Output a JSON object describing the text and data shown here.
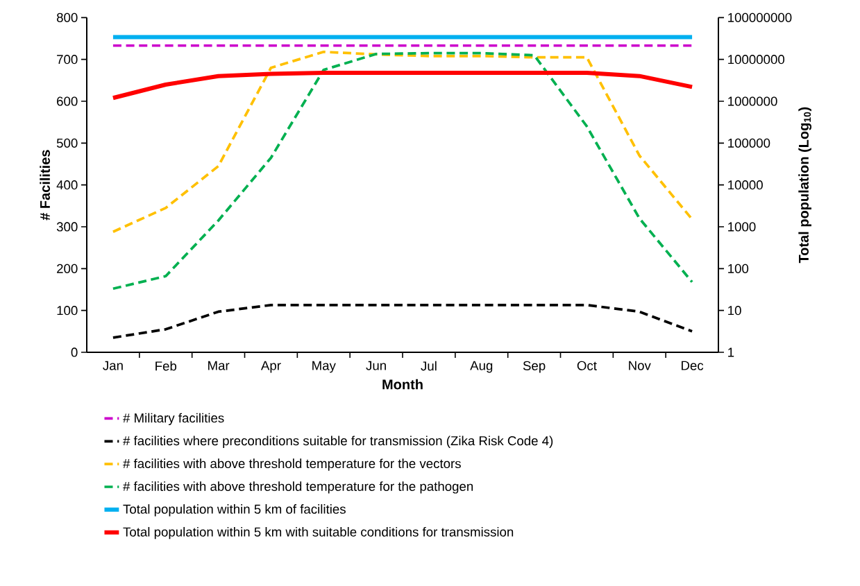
{
  "chart_data": {
    "type": "line",
    "xlabel": "Month",
    "ylabel": "# Facilities",
    "y2label": "Total population (Log$_{10}$)",
    "categories": [
      "Jan",
      "Feb",
      "Mar",
      "Apr",
      "May",
      "Jun",
      "Jul",
      "Aug",
      "Sep",
      "Oct",
      "Nov",
      "Dec"
    ],
    "ylim": [
      0,
      800
    ],
    "yticks": [
      0,
      100,
      200,
      300,
      400,
      500,
      600,
      700,
      800
    ],
    "y2lim": [
      1,
      100000000
    ],
    "y2ticks": [
      1,
      10,
      100,
      1000,
      10000,
      100000,
      1000000,
      10000000,
      100000000
    ],
    "log": "y2",
    "grid": false,
    "legend": "bottom",
    "marker": "none",
    "series": [
      {
        "name": "# Military facilities",
        "color": "#cc00cc",
        "line_style": "dashed",
        "values": [
          733,
          733,
          733,
          733,
          733,
          733,
          733,
          733,
          733,
          733,
          733,
          733
        ]
      },
      {
        "name": "# facilities where preconditions suitable for transmission (Zika Risk Code 4)",
        "color": "#000000",
        "line_style": "dashed",
        "values": [
          35,
          55,
          97,
          113,
          113,
          113,
          113,
          113,
          113,
          113,
          97,
          50
        ]
      },
      {
        "name": "# facilities with above threshold temperature for the vectors",
        "color": "#ffc000",
        "line_style": "dashed",
        "values": [
          288,
          345,
          445,
          680,
          718,
          712,
          708,
          708,
          705,
          705,
          470,
          318
        ]
      },
      {
        "name": "# facilities with above threshold temperature for the pathogen",
        "color": "#00b050",
        "line_style": "dashed",
        "values": [
          152,
          182,
          315,
          465,
          675,
          713,
          715,
          715,
          710,
          540,
          320,
          168
        ]
      },
      {
        "name": "Total population within 5 km of facilities",
        "color": "#00b0f0",
        "line_style": "solid",
        "axis": "y2",
        "values": [
          34000000,
          34000000,
          34000000,
          34000000,
          34000000,
          34000000,
          34000000,
          34000000,
          34000000,
          34000000,
          34000000,
          34000000
        ]
      },
      {
        "name": "Total population within 5 km with suitable conditions for transmission",
        "color": "#ff0000",
        "line_style": "solid",
        "axis": "y2",
        "values": [
          1200000,
          2500000,
          4000000,
          4500000,
          4800000,
          4800000,
          4800000,
          4800000,
          4800000,
          4800000,
          4000000,
          2200000
        ]
      }
    ]
  }
}
